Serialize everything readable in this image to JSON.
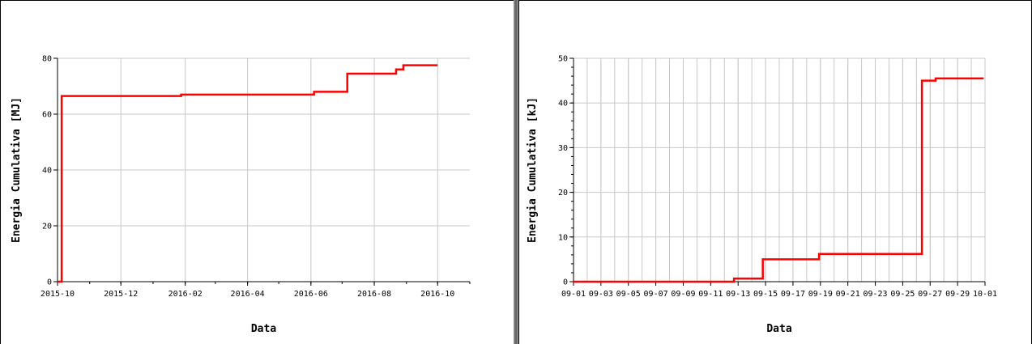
{
  "chart_data": [
    {
      "type": "line",
      "step": true,
      "xlabel": "Data",
      "ylabel": "Energia Cumulativa [MJ]",
      "x_type": "date",
      "xlim": [
        "2015-10-01",
        "2016-11-01"
      ],
      "ylim": [
        0,
        80
      ],
      "x_ticks": [
        "2015-10",
        "2015-12",
        "2016-02",
        "2016-04",
        "2016-06",
        "2016-08",
        "2016-10"
      ],
      "y_ticks": [
        0,
        20,
        40,
        60,
        80
      ],
      "grid": true,
      "color": "#ff0000",
      "series": [
        {
          "x": [
            "2015-10-01",
            "2015-10-05",
            "2015-10-05",
            "2016-01-28",
            "2016-01-28",
            "2016-06-04",
            "2016-06-04",
            "2016-07-06",
            "2016-07-06",
            "2016-08-22",
            "2016-08-22",
            "2016-08-29",
            "2016-08-29",
            "2016-10-01"
          ],
          "y": [
            0,
            0,
            66.5,
            66.5,
            67,
            67,
            68,
            68,
            74.5,
            74.5,
            76,
            76,
            77.5,
            77.5
          ]
        }
      ]
    },
    {
      "type": "line",
      "step": true,
      "xlabel": "Data",
      "ylabel": "Energia Cumulativa [kJ]",
      "x_type": "date",
      "xlim": [
        "09-01",
        "10-01"
      ],
      "ylim": [
        0,
        50
      ],
      "x_ticks": [
        "09-01",
        "09-03",
        "09-05",
        "09-07",
        "09-09",
        "09-11",
        "09-13",
        "09-15",
        "09-17",
        "09-19",
        "09-21",
        "09-23",
        "09-25",
        "09-27",
        "09-29",
        "10-01"
      ],
      "y_ticks": [
        0,
        10,
        20,
        30,
        40,
        50
      ],
      "grid": true,
      "color": "#ff0000",
      "series": [
        {
          "x": [
            "09-01",
            "09-12.7",
            "09-12.7",
            "09-14.8",
            "09-14.8",
            "09-18.9",
            "09-18.9",
            "09-26.4",
            "09-26.4",
            "09-27.4",
            "09-27.4",
            "09-30.9"
          ],
          "y": [
            0,
            0,
            0.7,
            0.7,
            5,
            5,
            6.2,
            6.2,
            45,
            45,
            45.5,
            45.5
          ]
        }
      ]
    }
  ]
}
